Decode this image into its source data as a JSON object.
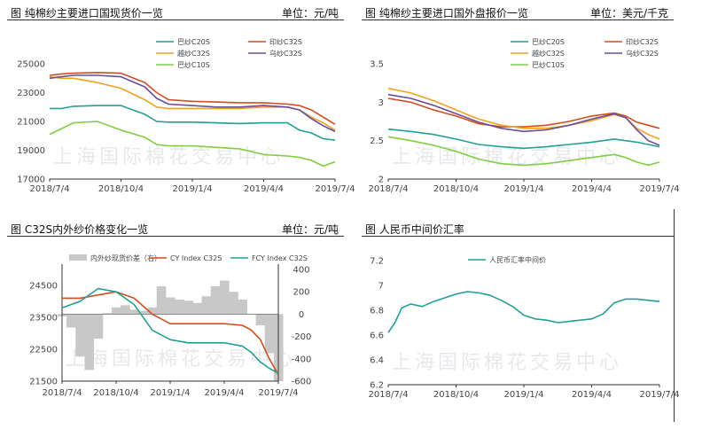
{
  "watermark": "上海国际棉花交易中心",
  "chart_data": [
    {
      "type": "line",
      "title": "图 纯棉纱主要进口国现货价一览",
      "unit": "单位：元/吨",
      "ylim": [
        17000,
        25000
      ],
      "yticks": [
        "25000",
        "23000",
        "21000",
        "19000",
        "17000"
      ],
      "xlim": [
        0,
        12
      ],
      "xticks": [
        "2018/7/4",
        "2018/10/4",
        "2019/1/4",
        "2019/4/4",
        "2019/7/4"
      ],
      "series": [
        {
          "name": "巴纱C20S",
          "color": "#21a192",
          "x": [
            0,
            0.5,
            1,
            2,
            3,
            4,
            4.5,
            5,
            6,
            7,
            8,
            9,
            10,
            10.5,
            11,
            11.5,
            12
          ],
          "values": [
            21900,
            21900,
            22050,
            22100,
            22100,
            21500,
            21000,
            20950,
            20950,
            20900,
            20850,
            20900,
            20900,
            20400,
            20200,
            19800,
            19700
          ]
        },
        {
          "name": "印纱C32S",
          "color": "#d34d1d",
          "x": [
            0,
            0.5,
            1,
            2,
            3,
            4,
            4.5,
            5,
            6,
            7,
            8,
            9,
            10,
            10.5,
            11,
            11.5,
            12
          ],
          "values": [
            24200,
            24300,
            24350,
            24400,
            24350,
            23700,
            23000,
            22500,
            22400,
            22350,
            22300,
            22300,
            22200,
            22100,
            21800,
            21300,
            20800
          ]
        },
        {
          "name": "越纱C32S",
          "color": "#f0a31f",
          "x": [
            0,
            0.5,
            1,
            2,
            3,
            4,
            4.5,
            5,
            6,
            7,
            8,
            9,
            10,
            10.5,
            11,
            11.5,
            12
          ],
          "values": [
            24100,
            24000,
            24000,
            23700,
            23300,
            22500,
            22000,
            21900,
            21900,
            21900,
            21900,
            22000,
            22000,
            21800,
            21300,
            20900,
            20400
          ]
        },
        {
          "name": "乌纱C32S",
          "color": "#6a4c9c",
          "x": [
            0,
            0.5,
            1,
            2,
            3,
            4,
            4.5,
            5,
            6,
            7,
            8,
            9,
            10,
            10.5,
            11,
            11.5,
            12
          ],
          "values": [
            24000,
            24100,
            24200,
            24200,
            24100,
            23400,
            22600,
            22200,
            22100,
            22000,
            22000,
            22100,
            22000,
            21800,
            21200,
            20700,
            20300
          ]
        },
        {
          "name": "巴纱C10S",
          "color": "#7fcf41",
          "x": [
            0,
            0.5,
            1,
            2,
            3,
            4,
            4.5,
            5,
            6,
            7,
            8,
            9,
            10,
            10.5,
            11,
            11.5,
            12
          ],
          "values": [
            20100,
            20500,
            20900,
            21000,
            20400,
            19900,
            19400,
            19300,
            19300,
            19200,
            19100,
            18700,
            18600,
            18500,
            18300,
            17900,
            18200
          ]
        }
      ]
    },
    {
      "type": "line",
      "title": "图 纯棉纱主要进口国外盘报价一览",
      "unit": "单位：美元/千克",
      "ylim": [
        2,
        3.5
      ],
      "yticks": [
        "3.5",
        "3",
        "2.5",
        "2"
      ],
      "xlim": [
        0,
        12
      ],
      "xticks": [
        "2018/7/4",
        "2018/10/4",
        "2019/1/4",
        "2019/4/4",
        "2019/7/4"
      ],
      "series": [
        {
          "name": "巴纱C20S",
          "color": "#21a192",
          "x": [
            0,
            1,
            2,
            3,
            4,
            5,
            6,
            7,
            8,
            9,
            10,
            10.5,
            11,
            11.5,
            12
          ],
          "values": [
            2.65,
            2.62,
            2.58,
            2.52,
            2.45,
            2.42,
            2.4,
            2.42,
            2.45,
            2.48,
            2.52,
            2.5,
            2.48,
            2.45,
            2.42
          ]
        },
        {
          "name": "印纱C32S",
          "color": "#d34d1d",
          "x": [
            0,
            1,
            2,
            3,
            4,
            5,
            6,
            7,
            8,
            9,
            10,
            10.5,
            11,
            11.5,
            12
          ],
          "values": [
            3.05,
            3.0,
            2.9,
            2.82,
            2.72,
            2.68,
            2.68,
            2.7,
            2.75,
            2.82,
            2.86,
            2.82,
            2.74,
            2.7,
            2.66
          ]
        },
        {
          "name": "越纱C32S",
          "color": "#f0a31f",
          "x": [
            0,
            1,
            2,
            3,
            4,
            5,
            6,
            7,
            8,
            9,
            10,
            10.5,
            11,
            11.5,
            12
          ],
          "values": [
            3.18,
            3.12,
            3.02,
            2.9,
            2.78,
            2.7,
            2.66,
            2.66,
            2.7,
            2.76,
            2.84,
            2.8,
            2.66,
            2.58,
            2.52
          ]
        },
        {
          "name": "乌纱C32S",
          "color": "#6a4c9c",
          "x": [
            0,
            1,
            2,
            3,
            4,
            5,
            6,
            7,
            8,
            9,
            10,
            10.5,
            11,
            11.5,
            12
          ],
          "values": [
            3.1,
            3.05,
            2.96,
            2.85,
            2.74,
            2.66,
            2.62,
            2.64,
            2.7,
            2.78,
            2.85,
            2.8,
            2.64,
            2.5,
            2.44
          ]
        },
        {
          "name": "巴纱C10S",
          "color": "#7fcf41",
          "x": [
            0,
            1,
            2,
            3,
            4,
            5,
            6,
            7,
            8,
            9,
            10,
            10.5,
            11,
            11.5,
            12
          ],
          "values": [
            2.55,
            2.5,
            2.44,
            2.36,
            2.26,
            2.2,
            2.18,
            2.2,
            2.24,
            2.28,
            2.32,
            2.28,
            2.22,
            2.18,
            2.22
          ]
        }
      ]
    },
    {
      "type": "line",
      "title": "图  C32S内外纱价格变化一览",
      "unit": "单位：元/吨",
      "ylim": [
        21500,
        25000
      ],
      "yticks": [
        "24500",
        "23500",
        "22500",
        "21500"
      ],
      "y2lim": [
        -600,
        400
      ],
      "y2ticks": [
        "400",
        "200",
        "0",
        "-200",
        "-400",
        "-600"
      ],
      "xlim": [
        0,
        12
      ],
      "xticks": [
        "2018/7/4",
        "2018/10/4",
        "2019/1/4",
        "2019/4/4",
        "2019/7/4"
      ],
      "bar_series": {
        "name": "内外纱现货价差（右）",
        "color": "#c8c8c8",
        "x": [
          0,
          0.5,
          1,
          1.5,
          2,
          2.5,
          3,
          3.5,
          4,
          4.5,
          5,
          5.5,
          6,
          6.5,
          7,
          7.5,
          8,
          8.5,
          9,
          9.5,
          10,
          10.5,
          11,
          11.5,
          12
        ],
        "values": [
          -20,
          -120,
          -380,
          -500,
          -220,
          10,
          60,
          80,
          40,
          30,
          60,
          250,
          150,
          130,
          120,
          100,
          160,
          250,
          300,
          200,
          130,
          0,
          -100,
          -350,
          -600
        ]
      },
      "series": [
        {
          "name": "CY Index C32S",
          "color": "#d34d1d",
          "x": [
            0,
            1,
            2,
            3,
            4,
            5,
            6,
            7,
            8,
            9,
            10,
            10.5,
            11,
            11.5,
            12
          ],
          "values": [
            24100,
            24100,
            24200,
            24300,
            24100,
            23600,
            23300,
            23300,
            23300,
            23300,
            23250,
            23100,
            22800,
            22200,
            21700
          ]
        },
        {
          "name": "FCY Index C32S",
          "color": "#21a192",
          "x": [
            0,
            1,
            2,
            3,
            4,
            5,
            6,
            7,
            8,
            9,
            10,
            10.5,
            11,
            11.5,
            12
          ],
          "values": [
            23800,
            24000,
            24400,
            24300,
            23900,
            23100,
            22800,
            22700,
            22700,
            22700,
            22600,
            22400,
            22100,
            21900,
            21750
          ]
        }
      ]
    },
    {
      "type": "line",
      "title": "图 人民币中间价汇率",
      "unit": "",
      "ylim": [
        6.2,
        7.2
      ],
      "yticks": [
        "7.2",
        "7",
        "6.8",
        "6.6",
        "6.4",
        "6.2"
      ],
      "xlim": [
        0,
        12
      ],
      "xticks": [
        "2018/7/4",
        "2018/10/4",
        "2019/1/4",
        "2019/4/4",
        "2019/7/4"
      ],
      "series": [
        {
          "name": "人民币汇率中间价",
          "color": "#21a192",
          "x": [
            0,
            0.3,
            0.6,
            1,
            1.5,
            2,
            2.5,
            3,
            3.5,
            4,
            4.5,
            5,
            5.5,
            6,
            6.5,
            7,
            7.5,
            8,
            8.5,
            9,
            9.5,
            10,
            10.5,
            11,
            11.5,
            12
          ],
          "values": [
            6.62,
            6.7,
            6.82,
            6.85,
            6.83,
            6.87,
            6.9,
            6.93,
            6.95,
            6.94,
            6.92,
            6.88,
            6.83,
            6.76,
            6.73,
            6.72,
            6.7,
            6.71,
            6.72,
            6.73,
            6.77,
            6.86,
            6.89,
            6.89,
            6.88,
            6.87
          ]
        }
      ]
    }
  ]
}
